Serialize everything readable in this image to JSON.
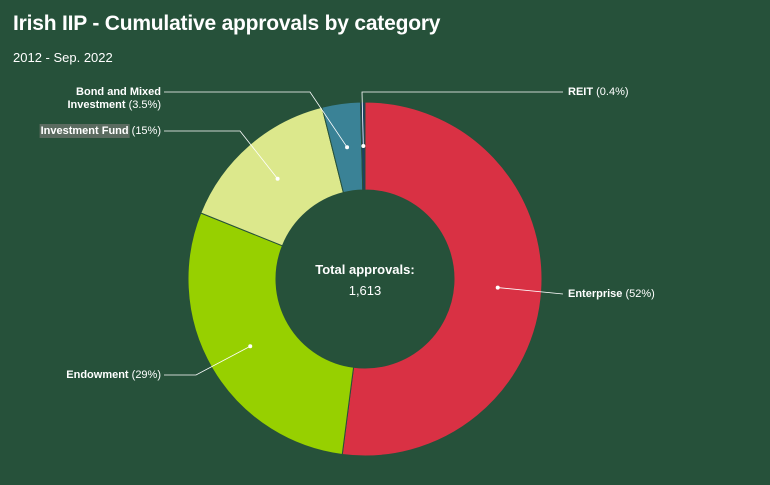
{
  "header": {
    "title": "Irish IIP - Cumulative approvals by category",
    "subtitle": "2012 - Sep. 2022"
  },
  "chart_data": {
    "type": "pie",
    "donut": true,
    "center": {
      "label": "Total approvals:",
      "value": "1,613"
    },
    "slices": [
      {
        "name": "Enterprise",
        "value": 52,
        "display": "(52%)",
        "color": "#d93144"
      },
      {
        "name": "Endowment",
        "value": 29,
        "display": "(29%)",
        "color": "#97d000"
      },
      {
        "name": "Investment Fund",
        "value": 15,
        "display": "(15%)",
        "color": "#dce88c"
      },
      {
        "name": "Bond and Mixed Investment",
        "value": 3.5,
        "display": "(3.5%)",
        "color": "#3a8296"
      },
      {
        "name": "REIT",
        "value": 0.4,
        "display": "(0.4%)",
        "color": "#1f3f63"
      }
    ]
  }
}
